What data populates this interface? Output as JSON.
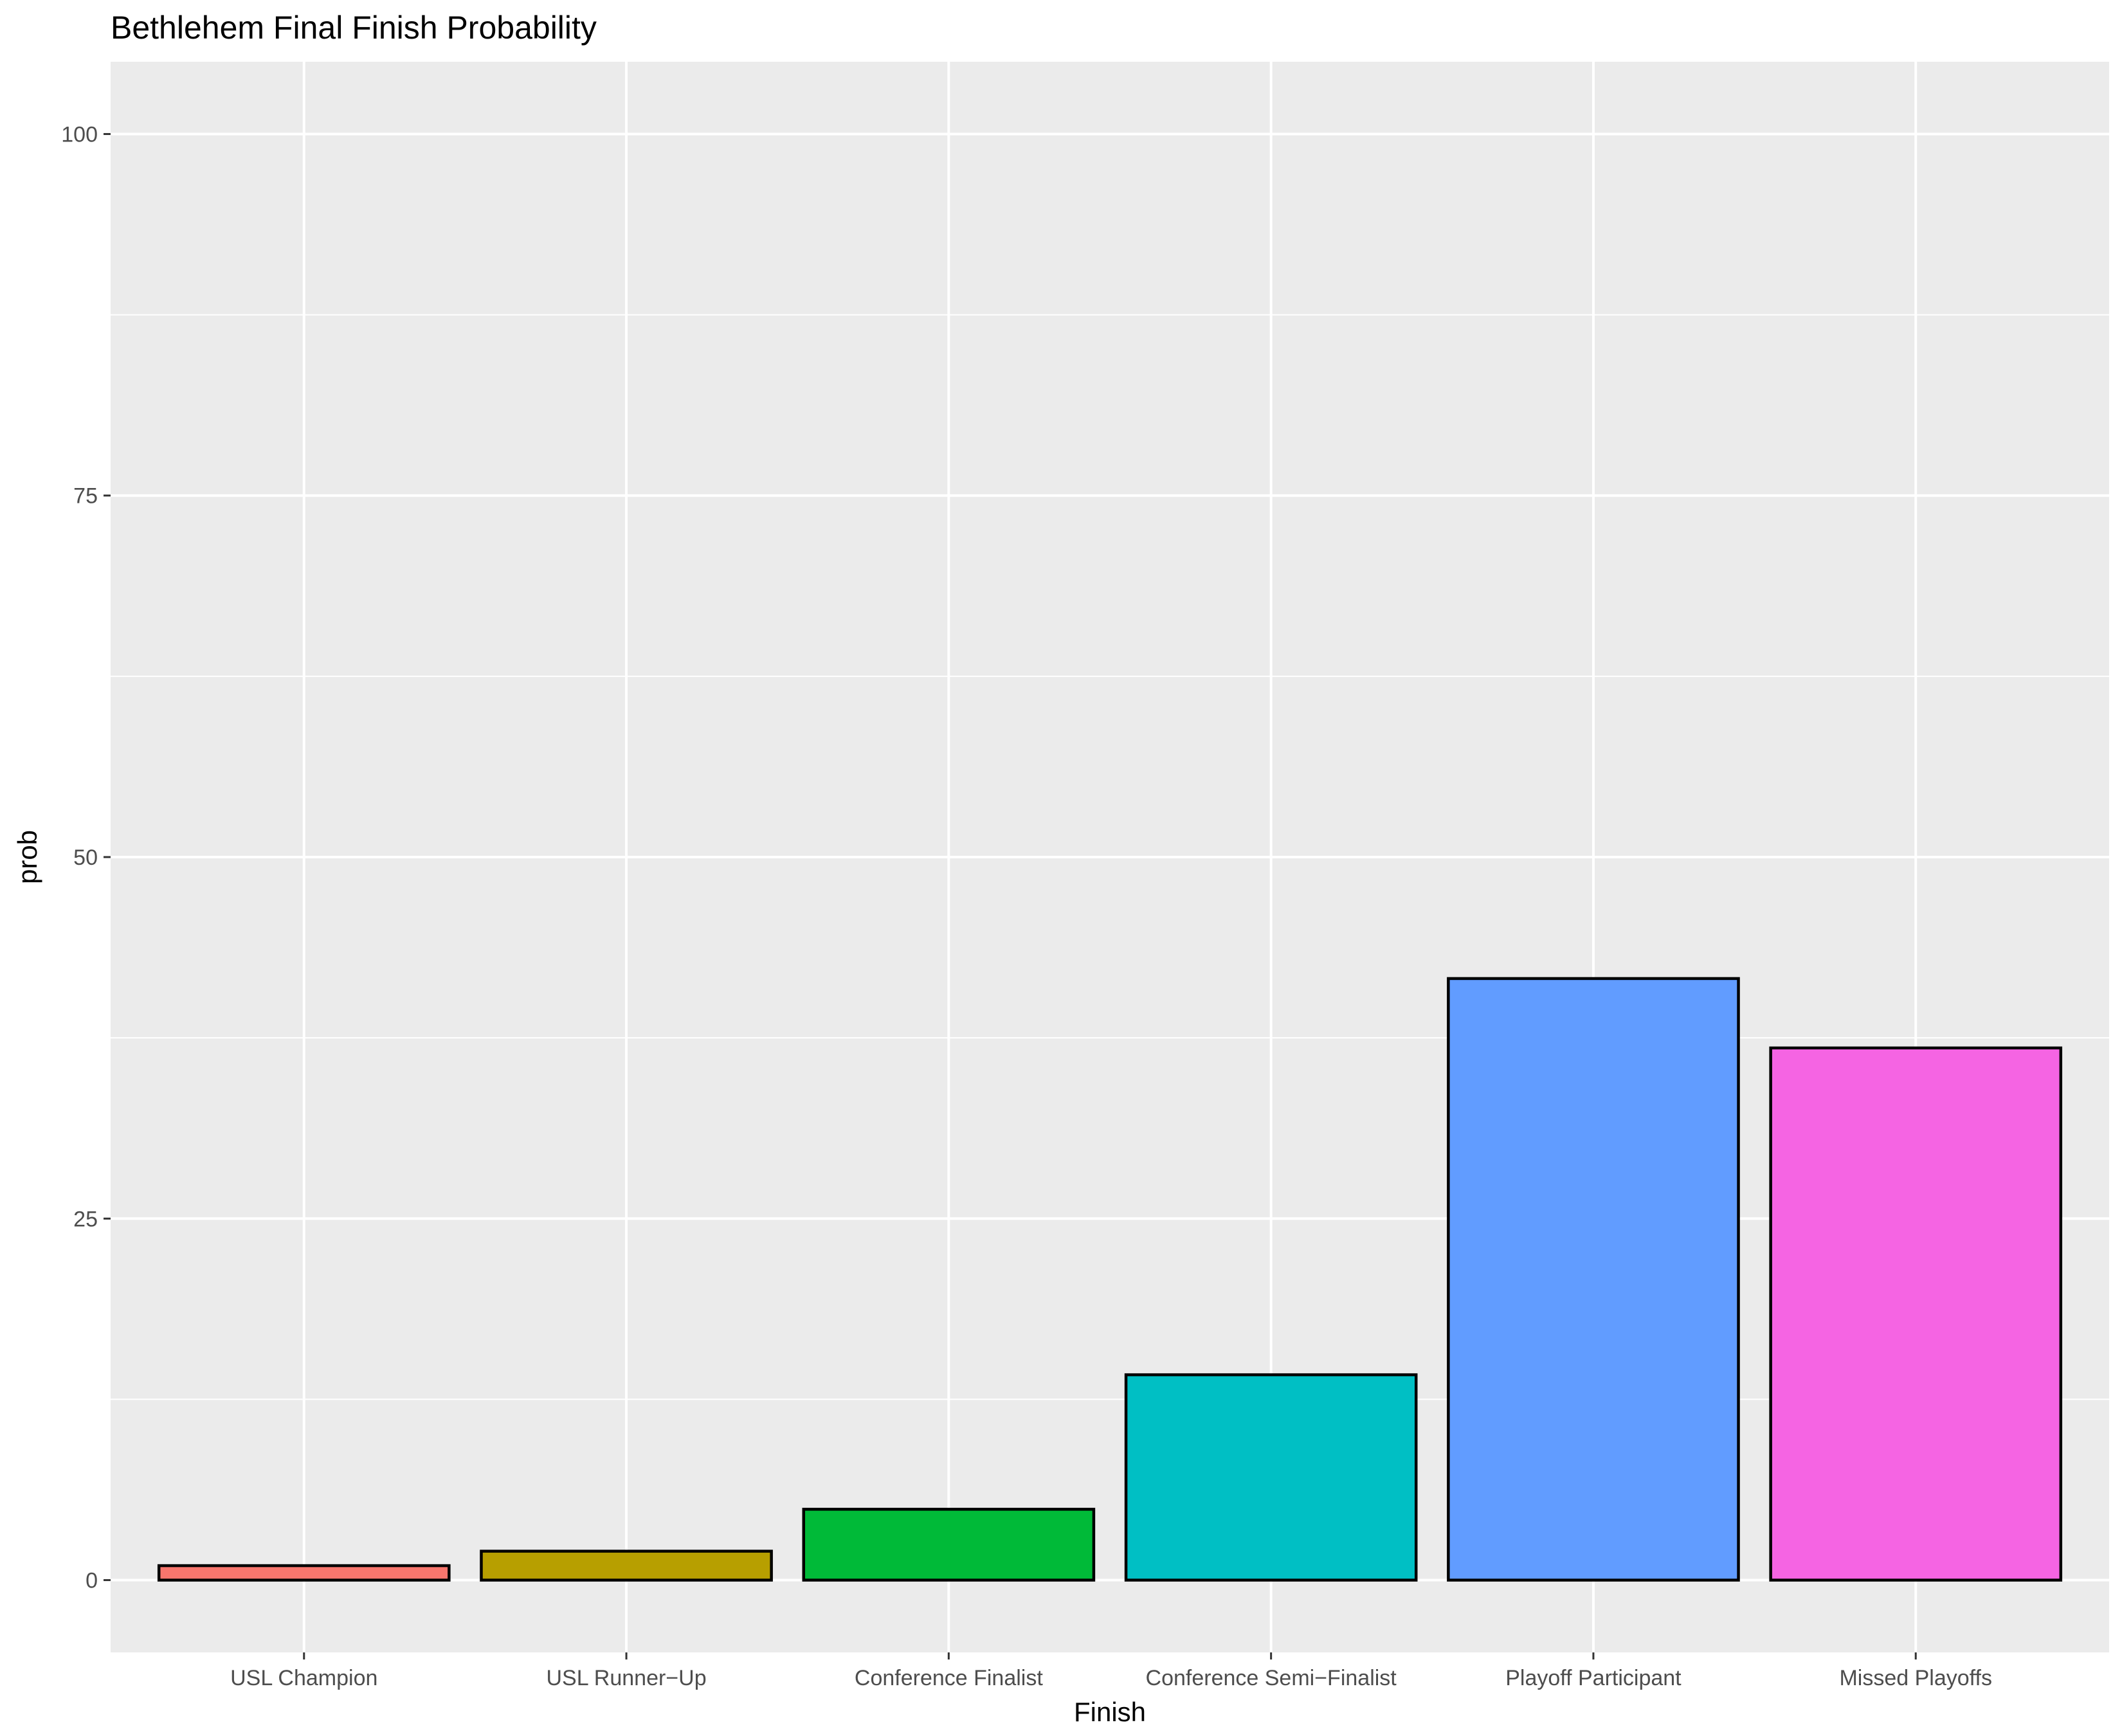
{
  "chart_data": {
    "type": "bar",
    "title": "Bethlehem Final Finish Probability",
    "xlabel": "Finish",
    "ylabel": "prob",
    "categories": [
      "USL Champion",
      "USL Runner−Up",
      "Conference Finalist",
      "Conference Semi−Finalist",
      "Playoff Participant",
      "Missed Playoffs"
    ],
    "values": [
      1.0,
      2.0,
      4.9,
      14.2,
      41.6,
      36.8
    ],
    "colors": [
      "#F8766D",
      "#B79F00",
      "#00BA38",
      "#00BFC4",
      "#619CFF",
      "#F564E3"
    ],
    "ylim": [
      -5,
      105
    ],
    "yticks": [
      0,
      25,
      50,
      75,
      100
    ],
    "ytick_labels": [
      "0",
      "25",
      "50",
      "75",
      "100"
    ],
    "grid": true,
    "legend": "none",
    "panel_background": "#EBEBEB",
    "grid_color": "#FFFFFF",
    "bar_outline": "#000000"
  }
}
